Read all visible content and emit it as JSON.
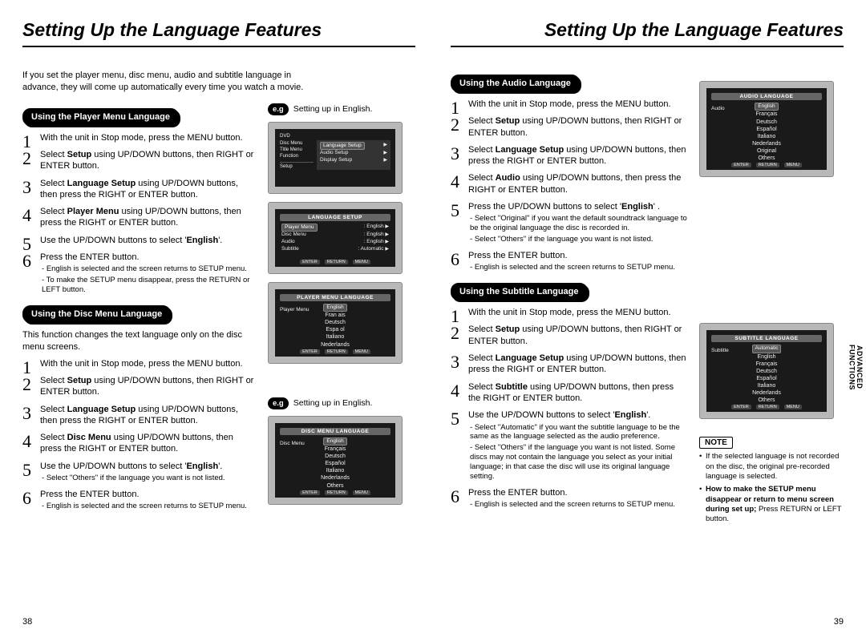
{
  "title_left": "Setting Up the Language Features",
  "title_right": "Setting Up the Language Features",
  "intro": "If you set the player menu, disc menu, audio and subtitle language in advance, they will come up automatically every time you watch a movie.",
  "eg_text": "Setting up in English.",
  "eg_label": "e.g",
  "sections": {
    "player_menu": {
      "label": "Using the Player Menu Language",
      "steps": [
        {
          "t": "With the unit in Stop mode, press the MENU button."
        },
        {
          "t": "Select <b>Setup</b> using UP/DOWN buttons, then RIGHT or ENTER button."
        },
        {
          "t": "Select <b>Language Setup</b> using UP/DOWN buttons, then press the RIGHT or ENTER button."
        },
        {
          "t": "Select <b>Player Menu</b> using UP/DOWN buttons, then press the RIGHT or ENTER button."
        },
        {
          "t": "Use the UP/DOWN buttons to select '<b>English</b>'."
        },
        {
          "t": "Press the ENTER button.",
          "subs": [
            "English is selected and the screen returns to SETUP menu.",
            "To make the SETUP menu disappear, press the RETURN or LEFT button."
          ]
        }
      ]
    },
    "disc_menu": {
      "label": "Using the Disc Menu Language",
      "desc": "This function changes the text language only on the disc menu screens.",
      "steps": [
        {
          "t": "With the unit in Stop mode, press the MENU button."
        },
        {
          "t": "Select <b>Setup</b> using UP/DOWN buttons, then RIGHT or ENTER button."
        },
        {
          "t": "Select <b>Language Setup</b> using UP/DOWN buttons, then press the RIGHT or ENTER button."
        },
        {
          "t": "Select <b>Disc Menu</b> using UP/DOWN buttons, then press the RIGHT or ENTER button."
        },
        {
          "t": "Use the UP/DOWN buttons to select '<b>English</b>'.",
          "subs": [
            "Select \"Others\" if the language you want is not listed."
          ]
        },
        {
          "t": "Press the ENTER button.",
          "subs": [
            "English is selected and the screen returns to SETUP menu."
          ]
        }
      ]
    },
    "audio": {
      "label": "Using the Audio Language",
      "steps": [
        {
          "t": "With the unit in Stop mode, press the MENU button."
        },
        {
          "t": "Select <b>Setup</b> using UP/DOWN buttons, then RIGHT or ENTER button."
        },
        {
          "t": "Select <b>Language Setup</b> using UP/DOWN buttons, then press the RIGHT or ENTER button."
        },
        {
          "t": "Select <b>Audio</b> using UP/DOWN buttons, then press the RIGHT or ENTER button."
        },
        {
          "t": "Press the UP/DOWN buttons to select '<b>English</b>' .",
          "subs": [
            "Select \"Original\" if you want the default soundtrack language to be the original language the disc is recorded in.",
            "Select \"Others\" if the language you want is not listed."
          ]
        },
        {
          "t": "Press the ENTER button.",
          "subs": [
            "English is selected and the screen returns to SETUP menu."
          ]
        }
      ]
    },
    "subtitle": {
      "label": "Using the Subtitle Language",
      "steps": [
        {
          "t": "With the unit in Stop mode, press the MENU button."
        },
        {
          "t": "Select <b>Setup</b> using UP/DOWN buttons, then RIGHT or ENTER button."
        },
        {
          "t": "Select <b>Language Setup</b> using UP/DOWN buttons, then press the RIGHT or ENTER button."
        },
        {
          "t": "Select <b>Subtitle</b> using UP/DOWN buttons, then press the RIGHT or ENTER button."
        },
        {
          "t": "Use the UP/DOWN buttons to select '<b>English</b>'.",
          "subs": [
            "Select \"Automatic\" if you want the subtitle language to be the same as the language selected as the audio preference.",
            "Select \"Others\" if the language you want is not listed. Some discs may not contain the language you  select as your initial language; in that case the disc will use its original language setting."
          ]
        },
        {
          "t": "Press the ENTER button.",
          "subs": [
            "English is selected and the screen returns to SETUP menu."
          ]
        }
      ]
    }
  },
  "screenshots": {
    "setup_menu": {
      "tag": "DVD",
      "rows": [
        {
          "l": "Disc Menu",
          "r": ""
        },
        {
          "l": "Title Menu",
          "r": ""
        },
        {
          "l": "Function",
          "r": ""
        }
      ],
      "panel_rows": [
        {
          "l": "Language Setup",
          "r": "▶",
          "sel": true
        },
        {
          "l": "Audio Setup",
          "r": "▶"
        },
        {
          "l": "Display Setup",
          "r": "▶"
        }
      ]
    },
    "lang_setup": {
      "header": "LANGUAGE SETUP",
      "rows": [
        {
          "l": "Player Menu",
          "r": ": English",
          "sel": true
        },
        {
          "l": "Disc Menu",
          "r": ": English"
        },
        {
          "l": "Audio",
          "r": ": English"
        },
        {
          "l": "Subtitle",
          "r": ": Automatic"
        }
      ]
    },
    "player_menu_lang": {
      "header": "PLAYER MENU LANGUAGE",
      "left": "Player Menu",
      "sel": "English",
      "list": [
        "Fran  ais",
        "Deutsch",
        "Espa  ol",
        "Italiano",
        "Nederlands"
      ]
    },
    "disc_menu_lang": {
      "header": "DISC MENU LANGUAGE",
      "left": "Disc Menu",
      "sel": "English",
      "list": [
        "Français",
        "Deutsch",
        "Español",
        "Italiano",
        "Nederlands",
        "Others"
      ]
    },
    "audio_lang": {
      "header": "AUDIO LANGUAGE",
      "left": "Audio",
      "sel": "English",
      "list": [
        "Français",
        "Deutsch",
        "Español",
        "Italiano",
        "Nederlands",
        "Original",
        "Others"
      ]
    },
    "subtitle_lang": {
      "header": "SUBTITLE LANGUAGE",
      "left": "Subtitle",
      "sel": "Automatic",
      "list": [
        "English",
        "Français",
        "Deutsch",
        "Español",
        "Italiano",
        "Nederlands",
        "Others"
      ]
    },
    "foot": [
      "ENTER",
      "RETURN",
      "MENU"
    ]
  },
  "note": {
    "label": "NOTE",
    "items": [
      "If the selected language is not recorded on the disc, the original pre-recorded language is selected.",
      "<b>How to make the SETUP menu disappear or return to menu screen during set up;</b> Press RETURN or LEFT button."
    ]
  },
  "side_tab": "ADVANCED\nFUNCTIONS",
  "page_left": "38",
  "page_right": "39",
  "colors": {
    "bg": "#ffffff",
    "text": "#000000",
    "crt_bezel": "#b8b8b8",
    "crt_screen": "#1a1a1a",
    "crt_text": "#eeeeee"
  }
}
